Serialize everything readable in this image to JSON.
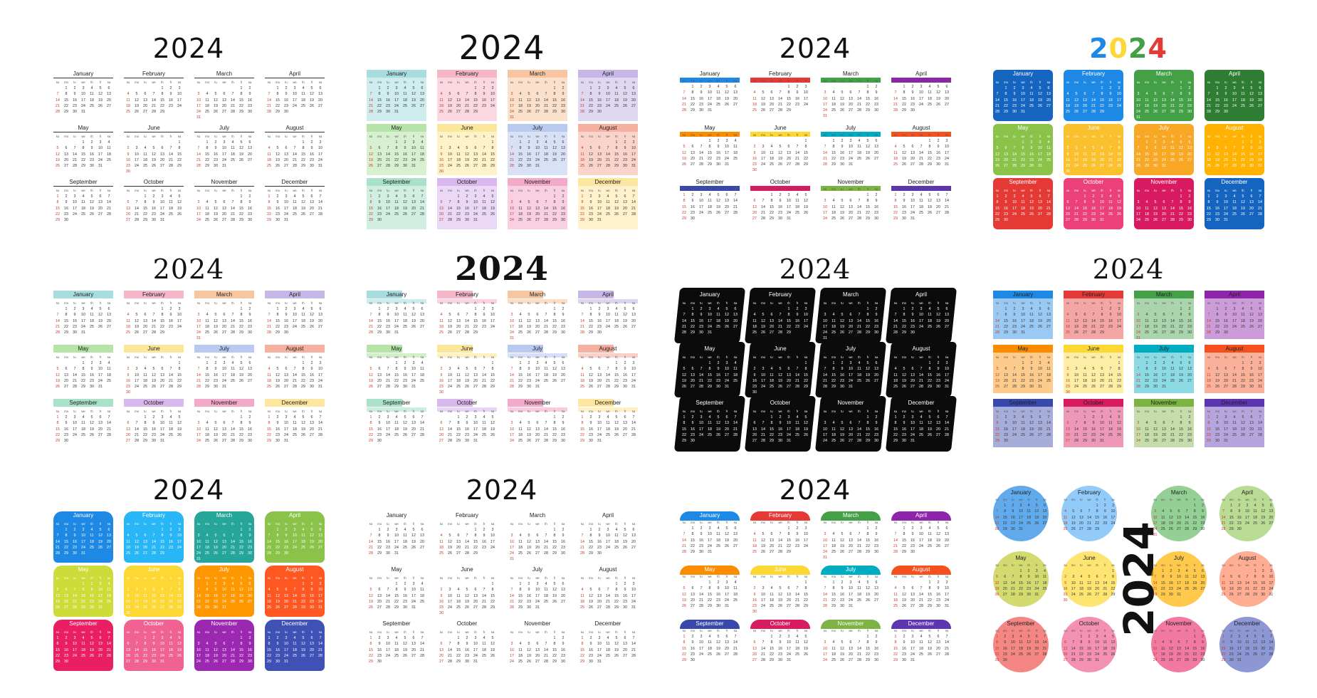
{
  "year": "2024",
  "months": [
    "January",
    "February",
    "March",
    "April",
    "May",
    "June",
    "July",
    "August",
    "September",
    "October",
    "November",
    "December"
  ],
  "weekdays": [
    "su",
    "mo",
    "tu",
    "we",
    "th",
    "fr",
    "sa"
  ],
  "panels": [
    {
      "id": "p1",
      "style": "plain-lines"
    },
    {
      "id": "p2",
      "style": "pastel-blocks"
    },
    {
      "id": "p3",
      "style": "rainbow-bars"
    },
    {
      "id": "p4",
      "style": "gradient-tiles"
    },
    {
      "id": "p5",
      "style": "watercolor-headers"
    },
    {
      "id": "p6",
      "style": "color-tabs"
    },
    {
      "id": "p7",
      "style": "black-brush"
    },
    {
      "id": "p8",
      "style": "folder-cards"
    },
    {
      "id": "p9",
      "style": "rounded-tabs"
    },
    {
      "id": "p10",
      "style": "minimal"
    },
    {
      "id": "p11",
      "style": "arch-headers"
    },
    {
      "id": "p12",
      "style": "circles-vertical-year"
    }
  ],
  "colors": {
    "pastel": [
      "#a8dde0",
      "#f5b6c8",
      "#f7c6a0",
      "#c7b7e6",
      "#b6e3a8",
      "#fbe79a",
      "#b9c9f0",
      "#f6b0a0",
      "#a9e2c8",
      "#d9b8ee",
      "#f3a9c9",
      "#fde6a0"
    ],
    "rainbow": [
      "#1e88e5",
      "#e53935",
      "#43a047",
      "#8e24aa",
      "#fb8c00",
      "#fdd835",
      "#00acc1",
      "#f4511e",
      "#3949ab",
      "#d81b60",
      "#7cb342",
      "#5e35b1"
    ],
    "tiles": [
      "#1565c0",
      "#1e88e5",
      "#43a047",
      "#2e7d32",
      "#8bc34a",
      "#fbc02d",
      "#f9a825",
      "#ffb300",
      "#e53935",
      "#ec407a",
      "#d81b60",
      "#1565c0"
    ],
    "folders": [
      "#1e88e5",
      "#29b6f6",
      "#26a69a",
      "#8bc34a",
      "#cddc39",
      "#fdd835",
      "#ff9800",
      "#ff5722",
      "#e91e63",
      "#f06292",
      "#9c27b0",
      "#3f51b5"
    ],
    "circles": [
      "#1e88e5",
      "#64b5f6",
      "#66bb6a",
      "#9ccc65",
      "#c0ca33",
      "#fdd835",
      "#ffb300",
      "#ff8a65",
      "#ef5350",
      "#f06292",
      "#ec407a",
      "#5c6bc0"
    ]
  }
}
